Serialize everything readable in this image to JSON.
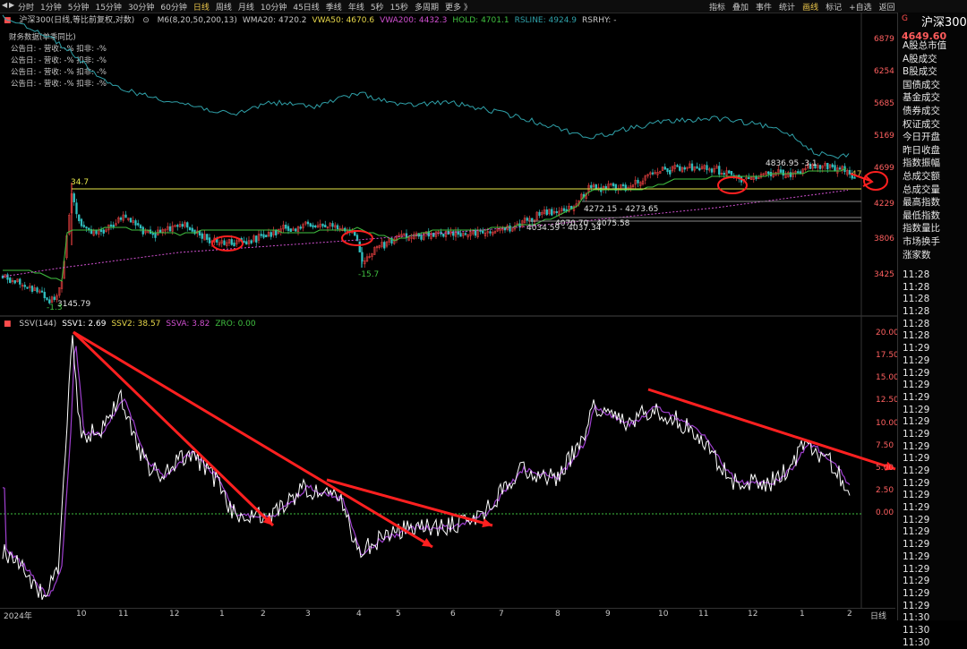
{
  "toolbar": {
    "periods": [
      "分时",
      "1分钟",
      "5分钟",
      "15分钟",
      "30分钟",
      "60分钟",
      "日线",
      "周线",
      "月线",
      "10分钟",
      "45日线",
      "季线",
      "年线",
      "5秒",
      "15秒",
      "多周期",
      "更多 》"
    ],
    "active_period": "日线",
    "tools": [
      "指标",
      "叠加",
      "事件",
      "统计",
      "画线",
      "标记",
      "+自选",
      "返回"
    ],
    "active_tool": "画线"
  },
  "main_legend": {
    "title": "沪深300(日线,等比前复权,对数)",
    "items": [
      {
        "text": "M6(8,20,50,200,13)",
        "color": "#c8c8c8"
      },
      {
        "text": "WMA20: 4720.2",
        "color": "#c8c8c8"
      },
      {
        "text": "VWA50: 4670.6",
        "color": "#e8d84a"
      },
      {
        "text": "VWA200: 4432.3",
        "color": "#d050d0"
      },
      {
        "text": "HOLD: 4701.1",
        "color": "#40c040"
      },
      {
        "text": "RSLINE: 4924.9",
        "color": "#2fa0a8"
      },
      {
        "text": "RSRHY: -",
        "color": "#c8c8c8"
      }
    ]
  },
  "financial": {
    "title": "财务数据(单季同比)",
    "rows": [
      "公告日: -    营收: -%    扣非: -%",
      "公告日: -    营收: -%    扣非: -%",
      "公告日: -    营收: -%    扣非: -%",
      "公告日: -    营收: -%    扣非: -%"
    ]
  },
  "price_axis": [
    "6879",
    "6254",
    "5685",
    "5169",
    "4699",
    "4229",
    "3806",
    "3425"
  ],
  "annotations": {
    "high_label": "34.7",
    "low_label": "-15.7",
    "low_price": "3145.79",
    "low_marker": "-1.3",
    "level_1": "4272.15 - 4273.65",
    "level_2": "4070.70 - 4075.58",
    "level_3": "4034.59 - 4037.34",
    "peak_label": "4836.95 -3.1",
    "right_marker": "47"
  },
  "indicator_legend": {
    "items": [
      {
        "text": "SSV(144)",
        "color": "#c8c8c8"
      },
      {
        "text": "SSV1: 2.69",
        "color": "#ffffff"
      },
      {
        "text": "SSV2: 38.57",
        "color": "#e8d84a"
      },
      {
        "text": "SSVA: 3.82",
        "color": "#d050d0"
      },
      {
        "text": "ZRO: 0.00",
        "color": "#40c040"
      }
    ]
  },
  "ssv_axis": [
    "20.00",
    "17.50",
    "15.00",
    "12.50",
    "10.00",
    "7.50",
    "5.00",
    "2.50",
    "0.00"
  ],
  "date_axis": {
    "year": "2024年",
    "months": [
      "10",
      "11",
      "12",
      "1",
      "2",
      "3",
      "4",
      "5",
      "6",
      "7",
      "8",
      "9",
      "10",
      "11",
      "12",
      "1",
      "2"
    ],
    "period_label": "日线"
  },
  "right_panel": {
    "code": "G",
    "name": "沪深300",
    "price": "4649.60",
    "items": [
      "A股总市值",
      "A股成交",
      "B股成交",
      "国债成交",
      "基金成交",
      "债券成交",
      "权证成交",
      "今日开盘",
      "昨日收盘",
      "指数振幅",
      "总成交额",
      "总成交量",
      "最高指数",
      "最低指数",
      "指数量比",
      "市场换手",
      "涨家数"
    ],
    "times": [
      "11:28",
      "11:28",
      "11:28",
      "11:28",
      "11:28",
      "11:28",
      "11:29",
      "11:29",
      "11:29",
      "11:29",
      "11:29",
      "11:29",
      "11:29",
      "11:29",
      "11:29",
      "11:29",
      "11:29",
      "11:29",
      "11:29",
      "11:29",
      "11:29",
      "11:29",
      "11:29",
      "11:29",
      "11:29",
      "11:29",
      "11:29",
      "11:29",
      "11:30",
      "11:30",
      "11:30"
    ]
  },
  "colors": {
    "up": "#e84040",
    "down": "#30c0c0",
    "grid": "#2a2a2a",
    "accent": "#e8c44a"
  }
}
